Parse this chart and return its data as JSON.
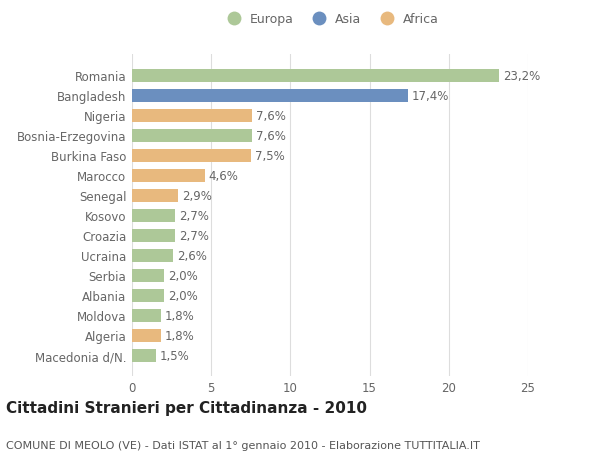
{
  "categories": [
    "Macedonia d/N.",
    "Algeria",
    "Moldova",
    "Albania",
    "Serbia",
    "Ucraina",
    "Croazia",
    "Kosovo",
    "Senegal",
    "Marocco",
    "Burkina Faso",
    "Bosnia-Erzegovina",
    "Nigeria",
    "Bangladesh",
    "Romania"
  ],
  "values": [
    1.5,
    1.8,
    1.8,
    2.0,
    2.0,
    2.6,
    2.7,
    2.7,
    2.9,
    4.6,
    7.5,
    7.6,
    7.6,
    17.4,
    23.2
  ],
  "continents": [
    "Europa",
    "Africa",
    "Europa",
    "Europa",
    "Europa",
    "Europa",
    "Europa",
    "Europa",
    "Africa",
    "Africa",
    "Africa",
    "Europa",
    "Africa",
    "Asia",
    "Europa"
  ],
  "colors": {
    "Europa": "#adc898",
    "Asia": "#6b8fbf",
    "Africa": "#e8b97e"
  },
  "title": "Cittadini Stranieri per Cittadinanza - 2010",
  "subtitle": "COMUNE DI MEOLO (VE) - Dati ISTAT al 1° gennaio 2010 - Elaborazione TUTTITALIA.IT",
  "xlim": [
    0,
    25
  ],
  "xticks": [
    0,
    5,
    10,
    15,
    20,
    25
  ],
  "background_color": "#ffffff",
  "bar_height": 0.65,
  "grid_color": "#dddddd",
  "label_fontsize": 8.5,
  "tick_fontsize": 8.5,
  "title_fontsize": 11,
  "subtitle_fontsize": 8
}
